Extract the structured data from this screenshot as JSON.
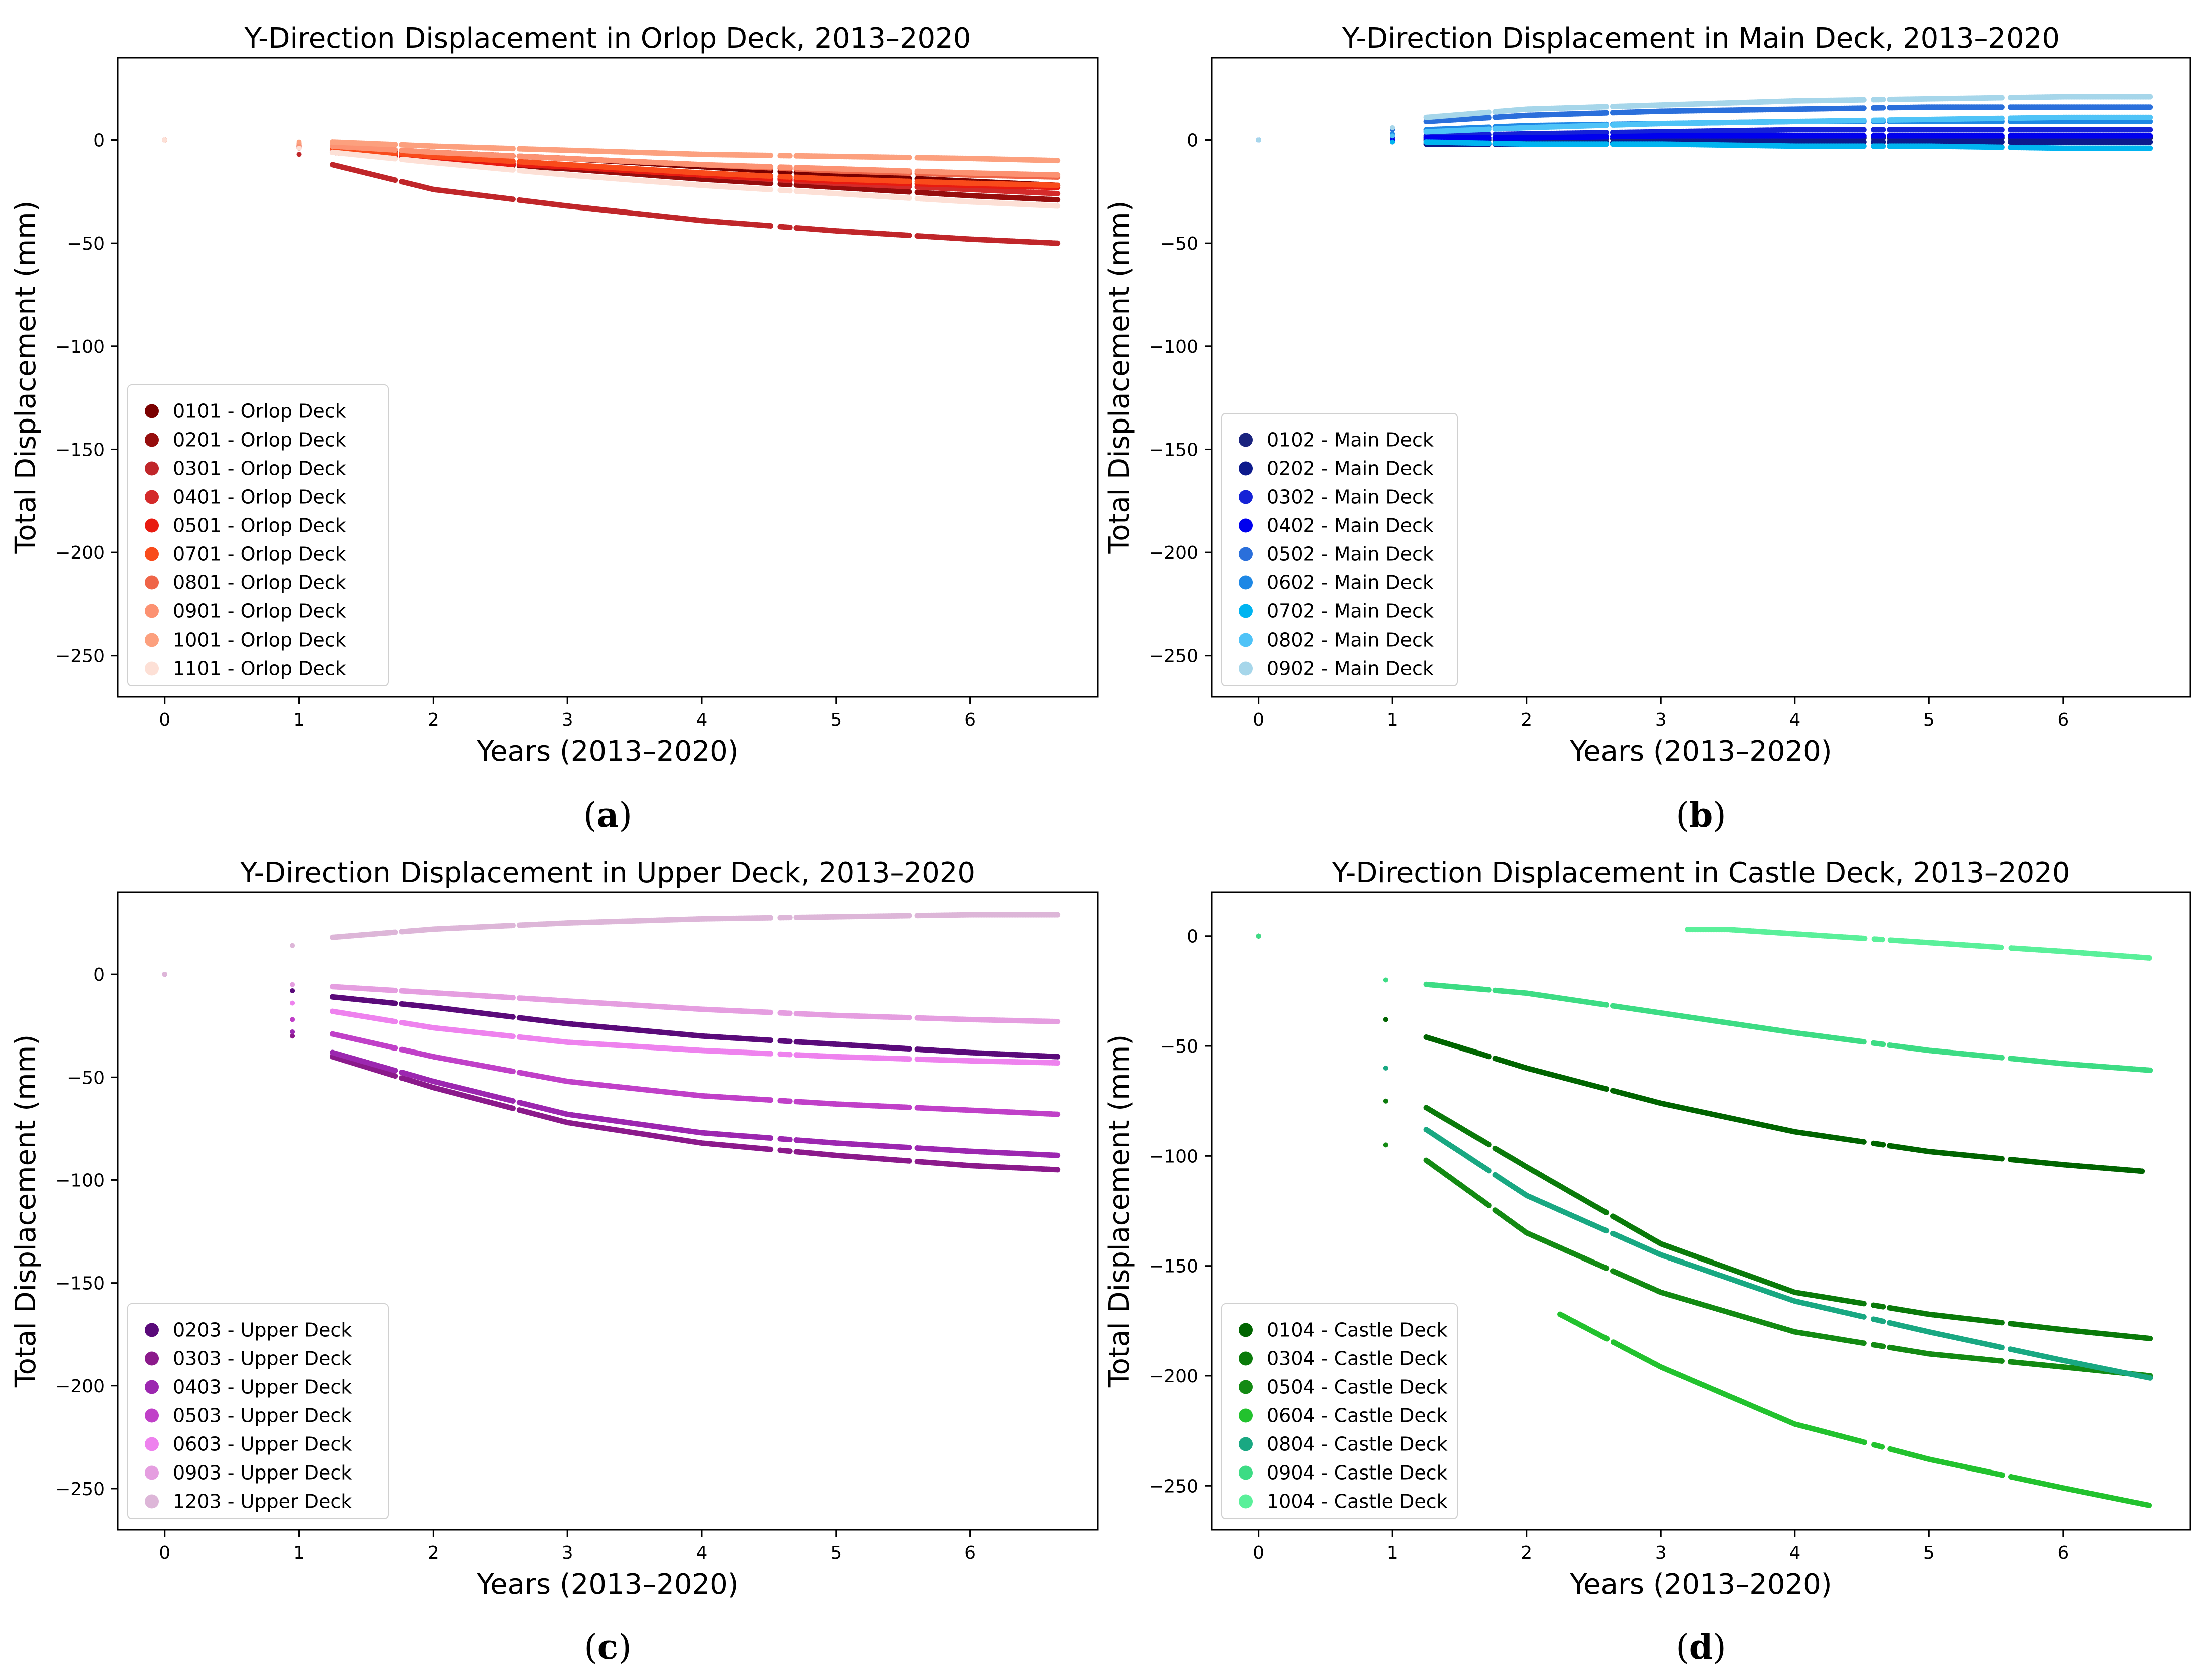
{
  "chart_data": [
    {
      "type": "scatter",
      "title": "Y-Direction Displacement in Orlop Deck, 2013–2020",
      "xlabel": "Years (2013–2020)",
      "ylabel": "Total Displacement (mm)",
      "xlim": [
        -0.35,
        6.95
      ],
      "ylim": [
        -270,
        40
      ],
      "xticks": [
        0,
        1,
        2,
        3,
        4,
        5,
        6
      ],
      "yticks": [
        0,
        -50,
        -100,
        -150,
        -200,
        -250
      ],
      "legend_position": "lower-left",
      "caption": "a",
      "series": [
        {
          "name": "0101 - Orlop Deck",
          "color": "#7a0000",
          "x": [
            0,
            1,
            1.25,
            2,
            3,
            4,
            5,
            6,
            6.65
          ],
          "y": [
            0,
            -3,
            -4,
            -6,
            -9,
            -13,
            -17,
            -20,
            -22
          ]
        },
        {
          "name": "0201 - Orlop Deck",
          "color": "#960d0d",
          "x": [
            0,
            1,
            1.25,
            2,
            3,
            4,
            5,
            6,
            6.65
          ],
          "y": [
            0,
            -4,
            -6,
            -10,
            -14,
            -19,
            -23,
            -27,
            -29
          ]
        },
        {
          "name": "0301 - Orlop Deck",
          "color": "#c0262a",
          "x": [
            0,
            1,
            1.25,
            2,
            2.5,
            3,
            4,
            5,
            6,
            6.65
          ],
          "y": [
            0,
            -7,
            -12,
            -24,
            -28,
            -32,
            -39,
            -44,
            -48,
            -50
          ]
        },
        {
          "name": "0401 - Orlop Deck",
          "color": "#d42a2a",
          "x": [
            0,
            1,
            1.25,
            2,
            3,
            4,
            5,
            6,
            6.65
          ],
          "y": [
            0,
            -3,
            -5,
            -9,
            -13,
            -17,
            -21,
            -24,
            -26
          ]
        },
        {
          "name": "0501 - Orlop Deck",
          "color": "#e81a10",
          "x": [
            0,
            1,
            1.25,
            2,
            3,
            4,
            5,
            6,
            6.65
          ],
          "y": [
            0,
            -4,
            -6,
            -10,
            -13,
            -17,
            -20,
            -22,
            -23
          ]
        },
        {
          "name": "0701 - Orlop Deck",
          "color": "#f94b1b",
          "x": [
            0,
            1,
            1.25,
            2,
            3,
            4,
            5,
            6,
            6.65
          ],
          "y": [
            0,
            -3,
            -4,
            -8,
            -12,
            -16,
            -19,
            -21,
            -22
          ]
        },
        {
          "name": "0801 - Orlop Deck",
          "color": "#ef6548",
          "x": [
            0,
            1,
            1.25,
            2,
            3,
            4,
            5,
            6,
            6.65
          ],
          "y": [
            0,
            -2,
            -3,
            -6,
            -9,
            -12,
            -15,
            -17,
            -18
          ]
        },
        {
          "name": "0901 - Orlop Deck",
          "color": "#fc9272",
          "x": [
            0,
            1,
            1.25,
            2,
            3,
            4,
            5,
            6,
            6.65
          ],
          "y": [
            0,
            -2,
            -3,
            -6,
            -9,
            -12,
            -14,
            -16,
            -17
          ]
        },
        {
          "name": "1001 - Orlop Deck",
          "color": "#fca07e",
          "x": [
            0,
            1,
            1.25,
            2,
            3,
            4,
            5,
            6,
            6.65
          ],
          "y": [
            0,
            -1,
            -1,
            -3,
            -5,
            -7,
            -8,
            -9,
            -10
          ]
        },
        {
          "name": "1101 - Orlop Deck",
          "color": "#fde0d6",
          "x": [
            0,
            1,
            1.25,
            2,
            3,
            4,
            5,
            6,
            6.65
          ],
          "y": [
            0,
            -4,
            -6,
            -11,
            -17,
            -22,
            -26,
            -30,
            -32
          ]
        }
      ]
    },
    {
      "type": "scatter",
      "title": "Y-Direction Displacement in Main Deck, 2013–2020",
      "xlabel": "Years (2013–2020)",
      "ylabel": "Total Displacement (mm)",
      "xlim": [
        -0.35,
        6.95
      ],
      "ylim": [
        -270,
        40
      ],
      "xticks": [
        0,
        1,
        2,
        3,
        4,
        5,
        6
      ],
      "yticks": [
        0,
        -50,
        -100,
        -150,
        -200,
        -250
      ],
      "legend_position": "lower-left",
      "caption": "b",
      "series": [
        {
          "name": "0102 - Main Deck",
          "color": "#1a237e",
          "x": [
            0,
            1,
            1.25,
            2,
            3,
            4,
            5,
            6,
            6.65
          ],
          "y": [
            0,
            0,
            0,
            0,
            1,
            1,
            1,
            1,
            1
          ]
        },
        {
          "name": "0202 - Main Deck",
          "color": "#0d1a8c",
          "x": [
            0,
            1,
            1.25,
            2,
            3,
            4,
            5,
            6,
            6.65
          ],
          "y": [
            0,
            -1,
            -2,
            -2,
            -1,
            -1,
            -1,
            -1,
            -1
          ]
        },
        {
          "name": "0302 - Main Deck",
          "color": "#1522d6",
          "x": [
            0,
            1,
            1.25,
            2,
            3,
            4,
            5,
            6,
            6.65
          ],
          "y": [
            0,
            1,
            2,
            3,
            4,
            5,
            5,
            5,
            5
          ]
        },
        {
          "name": "0402 - Main Deck",
          "color": "#0000ee",
          "x": [
            0,
            1,
            1.25,
            2,
            3,
            4,
            5,
            6,
            6.65
          ],
          "y": [
            0,
            0,
            1,
            1,
            2,
            2,
            2,
            2,
            2
          ]
        },
        {
          "name": "0502 - Main Deck",
          "color": "#2a6fdb",
          "x": [
            0,
            1,
            1.25,
            2,
            3,
            4,
            5,
            6,
            6.65
          ],
          "y": [
            0,
            5,
            9,
            12,
            14,
            15,
            16,
            16,
            16
          ]
        },
        {
          "name": "0602 - Main Deck",
          "color": "#1e88e5",
          "x": [
            0,
            1,
            1.25,
            2,
            3,
            4,
            5,
            6,
            6.65
          ],
          "y": [
            0,
            3,
            5,
            7,
            8,
            9,
            9,
            9,
            9
          ]
        },
        {
          "name": "0702 - Main Deck",
          "color": "#00b4f0",
          "x": [
            0,
            1,
            1.25,
            2,
            3,
            4,
            5,
            6,
            6.65
          ],
          "y": [
            0,
            -1,
            -1,
            -2,
            -2,
            -3,
            -3,
            -4,
            -4
          ]
        },
        {
          "name": "0802 - Main Deck",
          "color": "#4fc3f7",
          "x": [
            0,
            1,
            1.25,
            2,
            3,
            4,
            5,
            6,
            6.65
          ],
          "y": [
            0,
            2,
            4,
            6,
            8,
            9,
            10,
            11,
            11
          ]
        },
        {
          "name": "0902 - Main Deck",
          "color": "#a6d6ea",
          "x": [
            0,
            1,
            1.25,
            2,
            3,
            4,
            5,
            6,
            6.65
          ],
          "y": [
            0,
            6,
            11,
            15,
            17,
            19,
            20,
            21,
            21
          ]
        }
      ]
    },
    {
      "type": "scatter",
      "title": "Y-Direction Displacement in Upper Deck, 2013–2020",
      "xlabel": "Years (2013–2020)",
      "ylabel": "Total Displacement (mm)",
      "xlim": [
        -0.35,
        6.95
      ],
      "ylim": [
        -270,
        40
      ],
      "xticks": [
        0,
        1,
        2,
        3,
        4,
        5,
        6
      ],
      "yticks": [
        0,
        -50,
        -100,
        -150,
        -200,
        -250
      ],
      "legend_position": "lower-left",
      "caption": "c",
      "series": [
        {
          "name": "0203 - Upper Deck",
          "color": "#5a0a7a",
          "x": [
            0,
            0.95,
            1.25,
            2,
            3,
            4,
            5,
            6,
            6.65
          ],
          "y": [
            0,
            -8,
            -11,
            -16,
            -24,
            -30,
            -34,
            -38,
            -40
          ]
        },
        {
          "name": "0303 - Upper Deck",
          "color": "#8b1a8b",
          "x": [
            0,
            0.95,
            1.25,
            2,
            3,
            4,
            5,
            6,
            6.65
          ],
          "y": [
            0,
            -30,
            -40,
            -55,
            -72,
            -82,
            -88,
            -93,
            -95
          ]
        },
        {
          "name": "0403 - Upper Deck",
          "color": "#9c27b0",
          "x": [
            0,
            0.95,
            1.25,
            2,
            3,
            4,
            5,
            6,
            6.65
          ],
          "y": [
            0,
            -28,
            -38,
            -52,
            -68,
            -77,
            -82,
            -86,
            -88
          ]
        },
        {
          "name": "0503 - Upper Deck",
          "color": "#c040c8",
          "x": [
            0,
            0.95,
            1.25,
            2,
            3,
            4,
            5,
            6,
            6.65
          ],
          "y": [
            0,
            -22,
            -29,
            -40,
            -52,
            -59,
            -63,
            -66,
            -68
          ]
        },
        {
          "name": "0603 - Upper Deck",
          "color": "#ee82ee",
          "x": [
            0,
            0.95,
            1.25,
            2,
            3,
            4,
            5,
            6,
            6.65
          ],
          "y": [
            0,
            -14,
            -18,
            -26,
            -33,
            -37,
            -40,
            -42,
            -43
          ]
        },
        {
          "name": "0903 - Upper Deck",
          "color": "#e59ee0",
          "x": [
            0,
            0.95,
            1.25,
            2,
            3,
            4,
            5,
            6,
            6.65
          ],
          "y": [
            0,
            -5,
            -6,
            -9,
            -13,
            -17,
            -20,
            -22,
            -23
          ]
        },
        {
          "name": "1203 - Upper Deck",
          "color": "#ddb6d8",
          "x": [
            0,
            0.95,
            1.25,
            2,
            3,
            4,
            5,
            6,
            6.65
          ],
          "y": [
            0,
            14,
            18,
            22,
            25,
            27,
            28,
            29,
            29
          ]
        }
      ]
    },
    {
      "type": "scatter",
      "title": "Y-Direction Displacement in Castle Deck, 2013–2020",
      "xlabel": "Years (2013–2020)",
      "ylabel": "Total Displacement (mm)",
      "xlim": [
        -0.35,
        6.95
      ],
      "ylim": [
        -270,
        20
      ],
      "xticks": [
        0,
        1,
        2,
        3,
        4,
        5,
        6
      ],
      "yticks": [
        0,
        -50,
        -100,
        -150,
        -200,
        -250
      ],
      "legend_position": "lower-left",
      "caption": "d",
      "series": [
        {
          "name": "0104 - Castle Deck",
          "color": "#006400",
          "x": [
            0,
            0.95,
            1.25,
            2,
            3,
            4,
            5,
            6,
            6.6
          ],
          "y": [
            0,
            -38,
            -46,
            -60,
            -76,
            -89,
            -98,
            -104,
            -107
          ]
        },
        {
          "name": "0304 - Castle Deck",
          "color": "#0a7a0a",
          "x": [
            0,
            0.95,
            1.25,
            2,
            3,
            4,
            5,
            6,
            6.65
          ],
          "y": [
            0,
            -75,
            -78,
            -105,
            -140,
            -162,
            -172,
            -179,
            -183
          ]
        },
        {
          "name": "0504 - Castle Deck",
          "color": "#138a13",
          "x": [
            0,
            0.95,
            1.25,
            2,
            3,
            4,
            5,
            6,
            6.65
          ],
          "y": [
            0,
            -95,
            -102,
            -135,
            -162,
            -180,
            -190,
            -196,
            -200
          ]
        },
        {
          "name": "0604 - Castle Deck",
          "color": "#22c22e",
          "x": [
            2.25,
            2.5,
            3,
            4,
            5,
            6,
            6.65
          ],
          "y": [
            -172,
            -180,
            -196,
            -222,
            -238,
            -251,
            -259
          ]
        },
        {
          "name": "0804 - Castle Deck",
          "color": "#19a882",
          "x": [
            0,
            0.95,
            1.25,
            2,
            3,
            4,
            5,
            6,
            6.65
          ],
          "y": [
            0,
            -60,
            -88,
            -118,
            -145,
            -166,
            -180,
            -193,
            -201
          ]
        },
        {
          "name": "0904 - Castle Deck",
          "color": "#3ddc84",
          "x": [
            0,
            0.95,
            1.25,
            2,
            3,
            4,
            5,
            6,
            6.65
          ],
          "y": [
            0,
            -20,
            -22,
            -26,
            -35,
            -44,
            -52,
            -58,
            -61
          ]
        },
        {
          "name": "1004 - Castle Deck",
          "color": "#5af09a",
          "x": [
            3.2,
            3.5,
            4,
            4.5,
            5,
            5.5,
            6,
            6.65
          ],
          "y": [
            3,
            3,
            1,
            -1,
            -3,
            -5,
            -7,
            -10
          ]
        }
      ]
    }
  ]
}
